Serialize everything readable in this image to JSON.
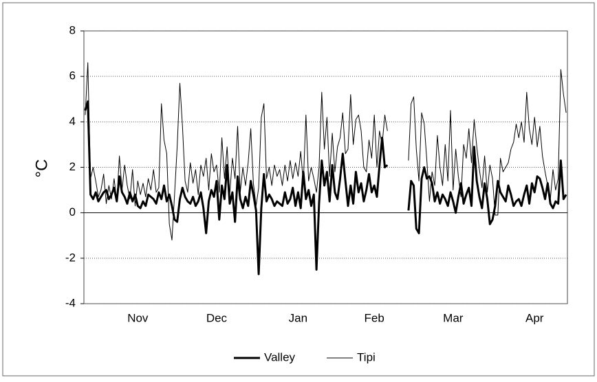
{
  "chart_data": {
    "type": "line",
    "y_label": "°C",
    "ylim": [
      -4,
      8
    ],
    "yticks": [
      -4,
      -2,
      0,
      2,
      4,
      6,
      8
    ],
    "grid": true,
    "legend": "bottom",
    "categories": [
      null,
      null,
      null,
      null,
      null,
      null,
      null,
      null,
      null,
      null,
      null,
      null,
      null,
      null,
      null,
      null,
      null,
      null,
      null,
      null,
      "Nov",
      null,
      null,
      null,
      null,
      null,
      null,
      null,
      null,
      null,
      null,
      null,
      null,
      null,
      null,
      null,
      null,
      null,
      null,
      null,
      null,
      null,
      null,
      null,
      null,
      null,
      null,
      null,
      null,
      null,
      "Dec",
      null,
      null,
      null,
      null,
      null,
      null,
      null,
      null,
      null,
      null,
      null,
      null,
      null,
      null,
      null,
      null,
      null,
      null,
      null,
      null,
      null,
      null,
      null,
      null,
      null,
      null,
      null,
      null,
      null,
      null,
      "Jan",
      null,
      null,
      null,
      null,
      null,
      null,
      null,
      null,
      null,
      null,
      null,
      null,
      null,
      null,
      null,
      null,
      null,
      null,
      null,
      null,
      null,
      null,
      null,
      null,
      null,
      null,
      null,
      null,
      "Feb",
      null,
      null,
      null,
      null,
      null,
      null,
      null,
      null,
      null,
      null,
      null,
      null,
      null,
      null,
      null,
      null,
      null,
      null,
      null,
      null,
      null,
      null,
      null,
      null,
      null,
      null,
      null,
      null,
      null,
      "Mar",
      null,
      null,
      null,
      null,
      null,
      null,
      null,
      null,
      null,
      null,
      null,
      null,
      null,
      null,
      null,
      null,
      null,
      null,
      null,
      null,
      null,
      null,
      null,
      null,
      null,
      null,
      null,
      null,
      null,
      null,
      "Apr",
      null,
      null,
      null,
      null,
      null,
      null,
      null,
      null,
      null,
      null,
      null,
      null
    ],
    "series": [
      {
        "name": "Valley",
        "color": "#000000",
        "width": 3,
        "values": [
          4.5,
          4.9,
          0.8,
          0.6,
          0.9,
          0.5,
          0.7,
          0.9,
          1.0,
          0.6,
          0.8,
          1.1,
          0.5,
          1.6,
          0.9,
          0.7,
          0.4,
          0.9,
          0.5,
          0.8,
          0.3,
          0.2,
          0.5,
          0.3,
          0.8,
          0.7,
          0.6,
          0.4,
          0.9,
          0.6,
          1.2,
          0.5,
          0.8,
          0.3,
          -0.3,
          -0.4,
          0.6,
          1.1,
          0.7,
          0.5,
          0.4,
          0.7,
          0.3,
          0.5,
          0.9,
          0.2,
          -0.9,
          0.5,
          1.0,
          0.7,
          1.4,
          -0.3,
          1.2,
          0.6,
          2.1,
          0.4,
          0.9,
          -0.4,
          1.6,
          0.6,
          0.2,
          0.7,
          0.3,
          1.4,
          0.8,
          0.1,
          -2.7,
          0.2,
          1.7,
          0.5,
          0.8,
          0.6,
          0.3,
          0.5,
          0.4,
          0.3,
          0.9,
          0.4,
          0.6,
          1.1,
          0.3,
          0.9,
          0.2,
          1.8,
          0.6,
          1.0,
          0.3,
          0.8,
          -2.5,
          0.4,
          2.3,
          1.2,
          1.8,
          0.5,
          2.1,
          0.9,
          0.6,
          1.5,
          2.6,
          1.4,
          0.3,
          1.2,
          0.4,
          1.8,
          0.9,
          1.3,
          0.5,
          1.0,
          1.7,
          0.9,
          1.2,
          0.7,
          2.1,
          3.3,
          2.0,
          2.1,
          null,
          null,
          null,
          null,
          null,
          null,
          null,
          0.1,
          1.4,
          1.2,
          -0.7,
          -0.9,
          1.5,
          2.0,
          1.5,
          1.6,
          1.3,
          0.5,
          0.9,
          0.4,
          0.8,
          0.6,
          0.3,
          0.9,
          0.5,
          0.0,
          0.7,
          1.3,
          0.4,
          0.8,
          1.1,
          0.3,
          2.9,
          1.4,
          0.7,
          0.2,
          1.3,
          0.6,
          -0.5,
          -0.3,
          0.3,
          1.4,
          0.9,
          0.7,
          0.5,
          1.2,
          0.8,
          0.3,
          0.5,
          0.6,
          0.3,
          0.8,
          1.2,
          0.4,
          1.3,
          0.9,
          1.6,
          1.5,
          1.1,
          0.6,
          1.3,
          0.4,
          0.2,
          0.5,
          0.4,
          2.3,
          0.6,
          0.8
        ]
      },
      {
        "name": "Tipi",
        "color": "#000000",
        "width": 1,
        "values": [
          4.3,
          6.6,
          1.5,
          2.0,
          1.4,
          0.7,
          1.0,
          1.7,
          0.4,
          1.2,
          0.6,
          1.5,
          0.5,
          2.5,
          1.0,
          2.1,
          1.2,
          0.6,
          1.9,
          0.3,
          1.4,
          0.8,
          1.3,
          0.7,
          1.5,
          1.0,
          1.9,
          0.9,
          1.1,
          4.8,
          3.2,
          2.6,
          -0.5,
          -1.2,
          0.8,
          2.9,
          5.7,
          3.8,
          1.4,
          0.9,
          2.2,
          1.3,
          1.9,
          0.8,
          2.1,
          1.6,
          2.4,
          1.0,
          2.6,
          1.8,
          2.1,
          0.9,
          3.3,
          1.5,
          2.9,
          0.8,
          2.4,
          1.5,
          3.8,
          0.9,
          2.0,
          1.2,
          2.2,
          3.7,
          1.3,
          0.3,
          1.1,
          4.2,
          4.8,
          1.5,
          2.0,
          1.2,
          2.1,
          1.6,
          1.9,
          1.2,
          2.1,
          1.4,
          2.3,
          1.5,
          2.2,
          1.6,
          2.7,
          1.3,
          4.3,
          1.4,
          2.0,
          1.5,
          0.9,
          2.0,
          5.3,
          2.8,
          4.2,
          1.6,
          3.5,
          1.8,
          2.9,
          3.3,
          4.4,
          2.6,
          2.8,
          5.2,
          3.0,
          4.1,
          4.3,
          3.6,
          2.0,
          1.8,
          3.2,
          2.4,
          4.3,
          2.0,
          3.6,
          3.0,
          4.3,
          3.6,
          null,
          null,
          null,
          null,
          null,
          null,
          null,
          2.3,
          4.8,
          5.1,
          2.8,
          1.4,
          4.4,
          3.9,
          2.3,
          0.5,
          1.8,
          1.2,
          3.4,
          2.0,
          1.2,
          3.0,
          1.4,
          4.5,
          1.0,
          2.8,
          1.6,
          0.7,
          3.0,
          2.4,
          3.7,
          2.2,
          4.1,
          2.9,
          1.9,
          1.1,
          2.5,
          0.9,
          2.1,
          1.5,
          -0.1,
          -0.1,
          2.4,
          1.8,
          2.0,
          2.2,
          2.8,
          3.1,
          3.9,
          3.3,
          4.0,
          3.1,
          5.3,
          3.7,
          3.0,
          4.2,
          2.9,
          3.8,
          2.5,
          1.8,
          1.2,
          0.6,
          1.9,
          1.0,
          1.5,
          6.3,
          5.2,
          4.4
        ]
      }
    ]
  }
}
